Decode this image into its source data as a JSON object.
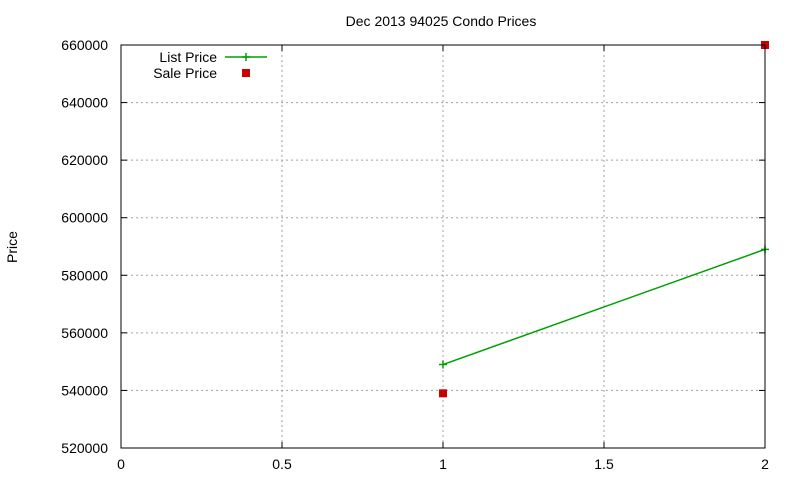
{
  "chart_data": {
    "type": "line",
    "title": "Dec 2013 94025 Condo Prices",
    "xlabel": "",
    "ylabel": "Price",
    "xlim": [
      0,
      2
    ],
    "ylim": [
      520000,
      660000
    ],
    "xticks": [
      "0",
      "0.5",
      "1",
      "1.5",
      "2"
    ],
    "yticks": [
      "520000",
      "540000",
      "560000",
      "580000",
      "600000",
      "620000",
      "640000",
      "660000"
    ],
    "grid": true,
    "legend_position": "top-left",
    "series": [
      {
        "name": "List Price",
        "style": "linespoints",
        "color": "#00a000",
        "x": [
          1,
          2
        ],
        "y": [
          549000,
          589000
        ]
      },
      {
        "name": "Sale Price",
        "style": "points",
        "color": "#cc0000",
        "x": [
          1,
          2
        ],
        "y": [
          539000,
          660000
        ]
      }
    ]
  }
}
